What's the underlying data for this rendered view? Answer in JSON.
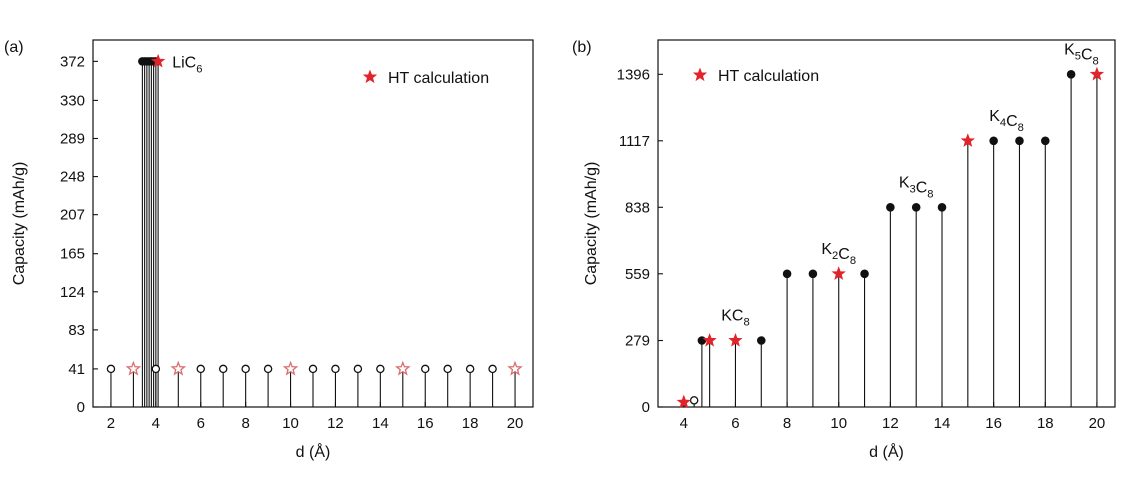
{
  "chart_data": [
    {
      "type": "stem",
      "panel_label": "(a)",
      "xlabel": "d (Å)",
      "ylabel": "Capacity (mAh/g)",
      "xlim": [
        1.2,
        20.8
      ],
      "ylim": [
        0,
        395
      ],
      "xticks": [
        2,
        4,
        6,
        8,
        10,
        12,
        14,
        16,
        18,
        20
      ],
      "yticks": [
        0,
        41,
        83,
        124,
        165,
        207,
        248,
        289,
        330,
        372
      ],
      "legend": {
        "label": "HT calculation",
        "position": "top-right"
      },
      "annotations": [
        {
          "base": "LiC",
          "sub": "6",
          "x": 4.2,
          "y": 372
        }
      ],
      "series": [
        {
          "marker": "open-circle",
          "x": [
            2,
            4,
            6,
            7,
            8,
            9,
            11,
            12,
            13,
            14,
            16,
            17,
            18,
            19
          ],
          "y": [
            41,
            41,
            41,
            41,
            41,
            41,
            41,
            41,
            41,
            41,
            41,
            41,
            41,
            41
          ]
        },
        {
          "marker": "filled-circle",
          "x": [
            3.4,
            3.5,
            3.6,
            3.7,
            3.8,
            3.9,
            4.0
          ],
          "y": [
            372,
            372,
            372,
            372,
            372,
            372,
            372
          ]
        },
        {
          "marker": "open-star",
          "name": "HT calculation",
          "x": [
            3,
            5,
            10,
            15,
            20
          ],
          "y": [
            41,
            41,
            41,
            41,
            41
          ]
        },
        {
          "marker": "filled-star",
          "name": "HT calculation",
          "x": [
            4.1
          ],
          "y": [
            372
          ]
        }
      ]
    },
    {
      "type": "stem",
      "panel_label": "(b)",
      "xlabel": "d (Å)",
      "ylabel": "Capacity (mAh/g)",
      "xlim": [
        3.0,
        20.7
      ],
      "ylim": [
        0,
        1540
      ],
      "xticks": [
        4,
        6,
        8,
        10,
        12,
        14,
        16,
        18,
        20
      ],
      "yticks": [
        0,
        279,
        559,
        838,
        1117,
        1396
      ],
      "legend": {
        "label": "HT calculation",
        "position": "top-left"
      },
      "annotations": [
        {
          "base": "KC",
          "sub": "8",
          "x": 6.0,
          "y": 279
        },
        {
          "base": "K",
          "sub": "2",
          "base2": "C",
          "sub2": "8",
          "x": 10.0,
          "y": 559
        },
        {
          "base": "K",
          "sub": "3",
          "base2": "C",
          "sub2": "8",
          "x": 13.0,
          "y": 838
        },
        {
          "base": "K",
          "sub": "4",
          "base2": "C",
          "sub2": "8",
          "x": 16.5,
          "y": 1117
        },
        {
          "base": "K",
          "sub": "5",
          "base2": "C",
          "sub2": "8",
          "x": 19.4,
          "y": 1396
        }
      ],
      "series": [
        {
          "marker": "open-circle",
          "x": [
            4.4
          ],
          "y": [
            28
          ]
        },
        {
          "marker": "filled-circle",
          "x": [
            4.7,
            7,
            8,
            9,
            11,
            12,
            13,
            14,
            16,
            17,
            18,
            19
          ],
          "y": [
            279,
            279,
            559,
            559,
            559,
            838,
            838,
            838,
            1117,
            1117,
            1117,
            1396
          ]
        },
        {
          "marker": "filled-star",
          "name": "HT calculation",
          "x": [
            4,
            5,
            6,
            10,
            15,
            20
          ],
          "y": [
            20,
            279,
            279,
            559,
            1117,
            1396
          ]
        }
      ]
    }
  ]
}
